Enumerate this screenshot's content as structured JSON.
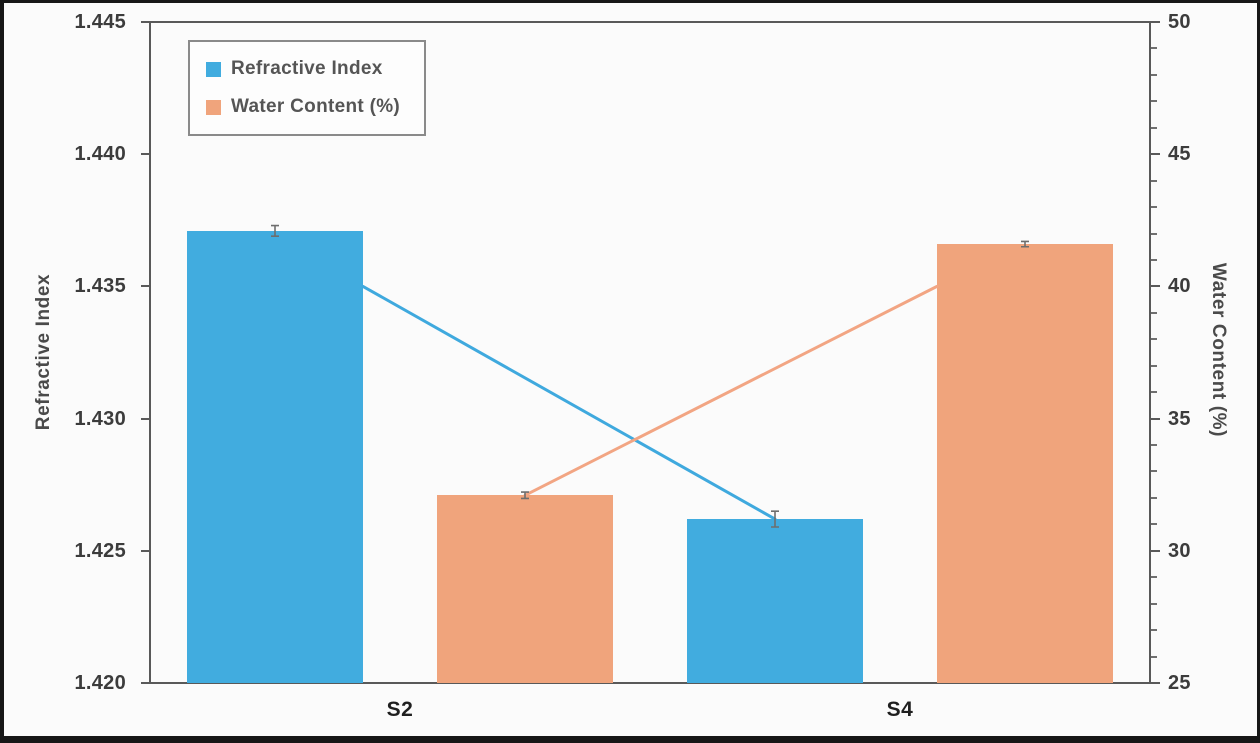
{
  "chart_data": {
    "type": "bar",
    "title": "",
    "categories": [
      "S2",
      "S4"
    ],
    "series": [
      {
        "name": "Refractive Index",
        "axis": "left",
        "color": "#41ACDF",
        "line_color": "#3FA9DE",
        "error_color": "#6e6e6e",
        "values": [
          1.4371,
          1.4262
        ],
        "errors": [
          0.0002,
          0.0003
        ]
      },
      {
        "name": "Water Content (%)",
        "axis": "right",
        "color": "#F0A47C",
        "line_color": "#F2A583",
        "error_color": "#6e6e6e",
        "values": [
          32.1,
          41.6
        ],
        "errors": [
          0.12,
          0.1
        ]
      }
    ],
    "left_axis": {
      "label": "Refractive Index",
      "min": 1.42,
      "max": 1.445,
      "major_step": 0.005,
      "tick_labels": [
        "1.420",
        "1.425",
        "1.430",
        "1.435",
        "1.440",
        "1.445"
      ]
    },
    "right_axis": {
      "label": "Water Content (%)",
      "min": 25,
      "max": 50,
      "major_step": 5,
      "minor_step": 1,
      "tick_labels": [
        "25",
        "30",
        "35",
        "40",
        "45",
        "50"
      ]
    },
    "legend": {
      "position": "top-left",
      "items": [
        "Refractive Index",
        "Water Content (%)"
      ]
    },
    "connectors": [
      {
        "series": 0,
        "points": [
          {
            "category": 0,
            "anchor": "right",
            "value": 1.435
          },
          {
            "category": 1,
            "anchor": "center",
            "value": 1.4262
          }
        ]
      },
      {
        "series": 1,
        "points": [
          {
            "category": 0,
            "anchor": "center",
            "value": 32.1
          },
          {
            "category": 1,
            "anchor": "left",
            "value": 40.0
          }
        ]
      }
    ],
    "grid": "off",
    "plot_border": "box"
  }
}
